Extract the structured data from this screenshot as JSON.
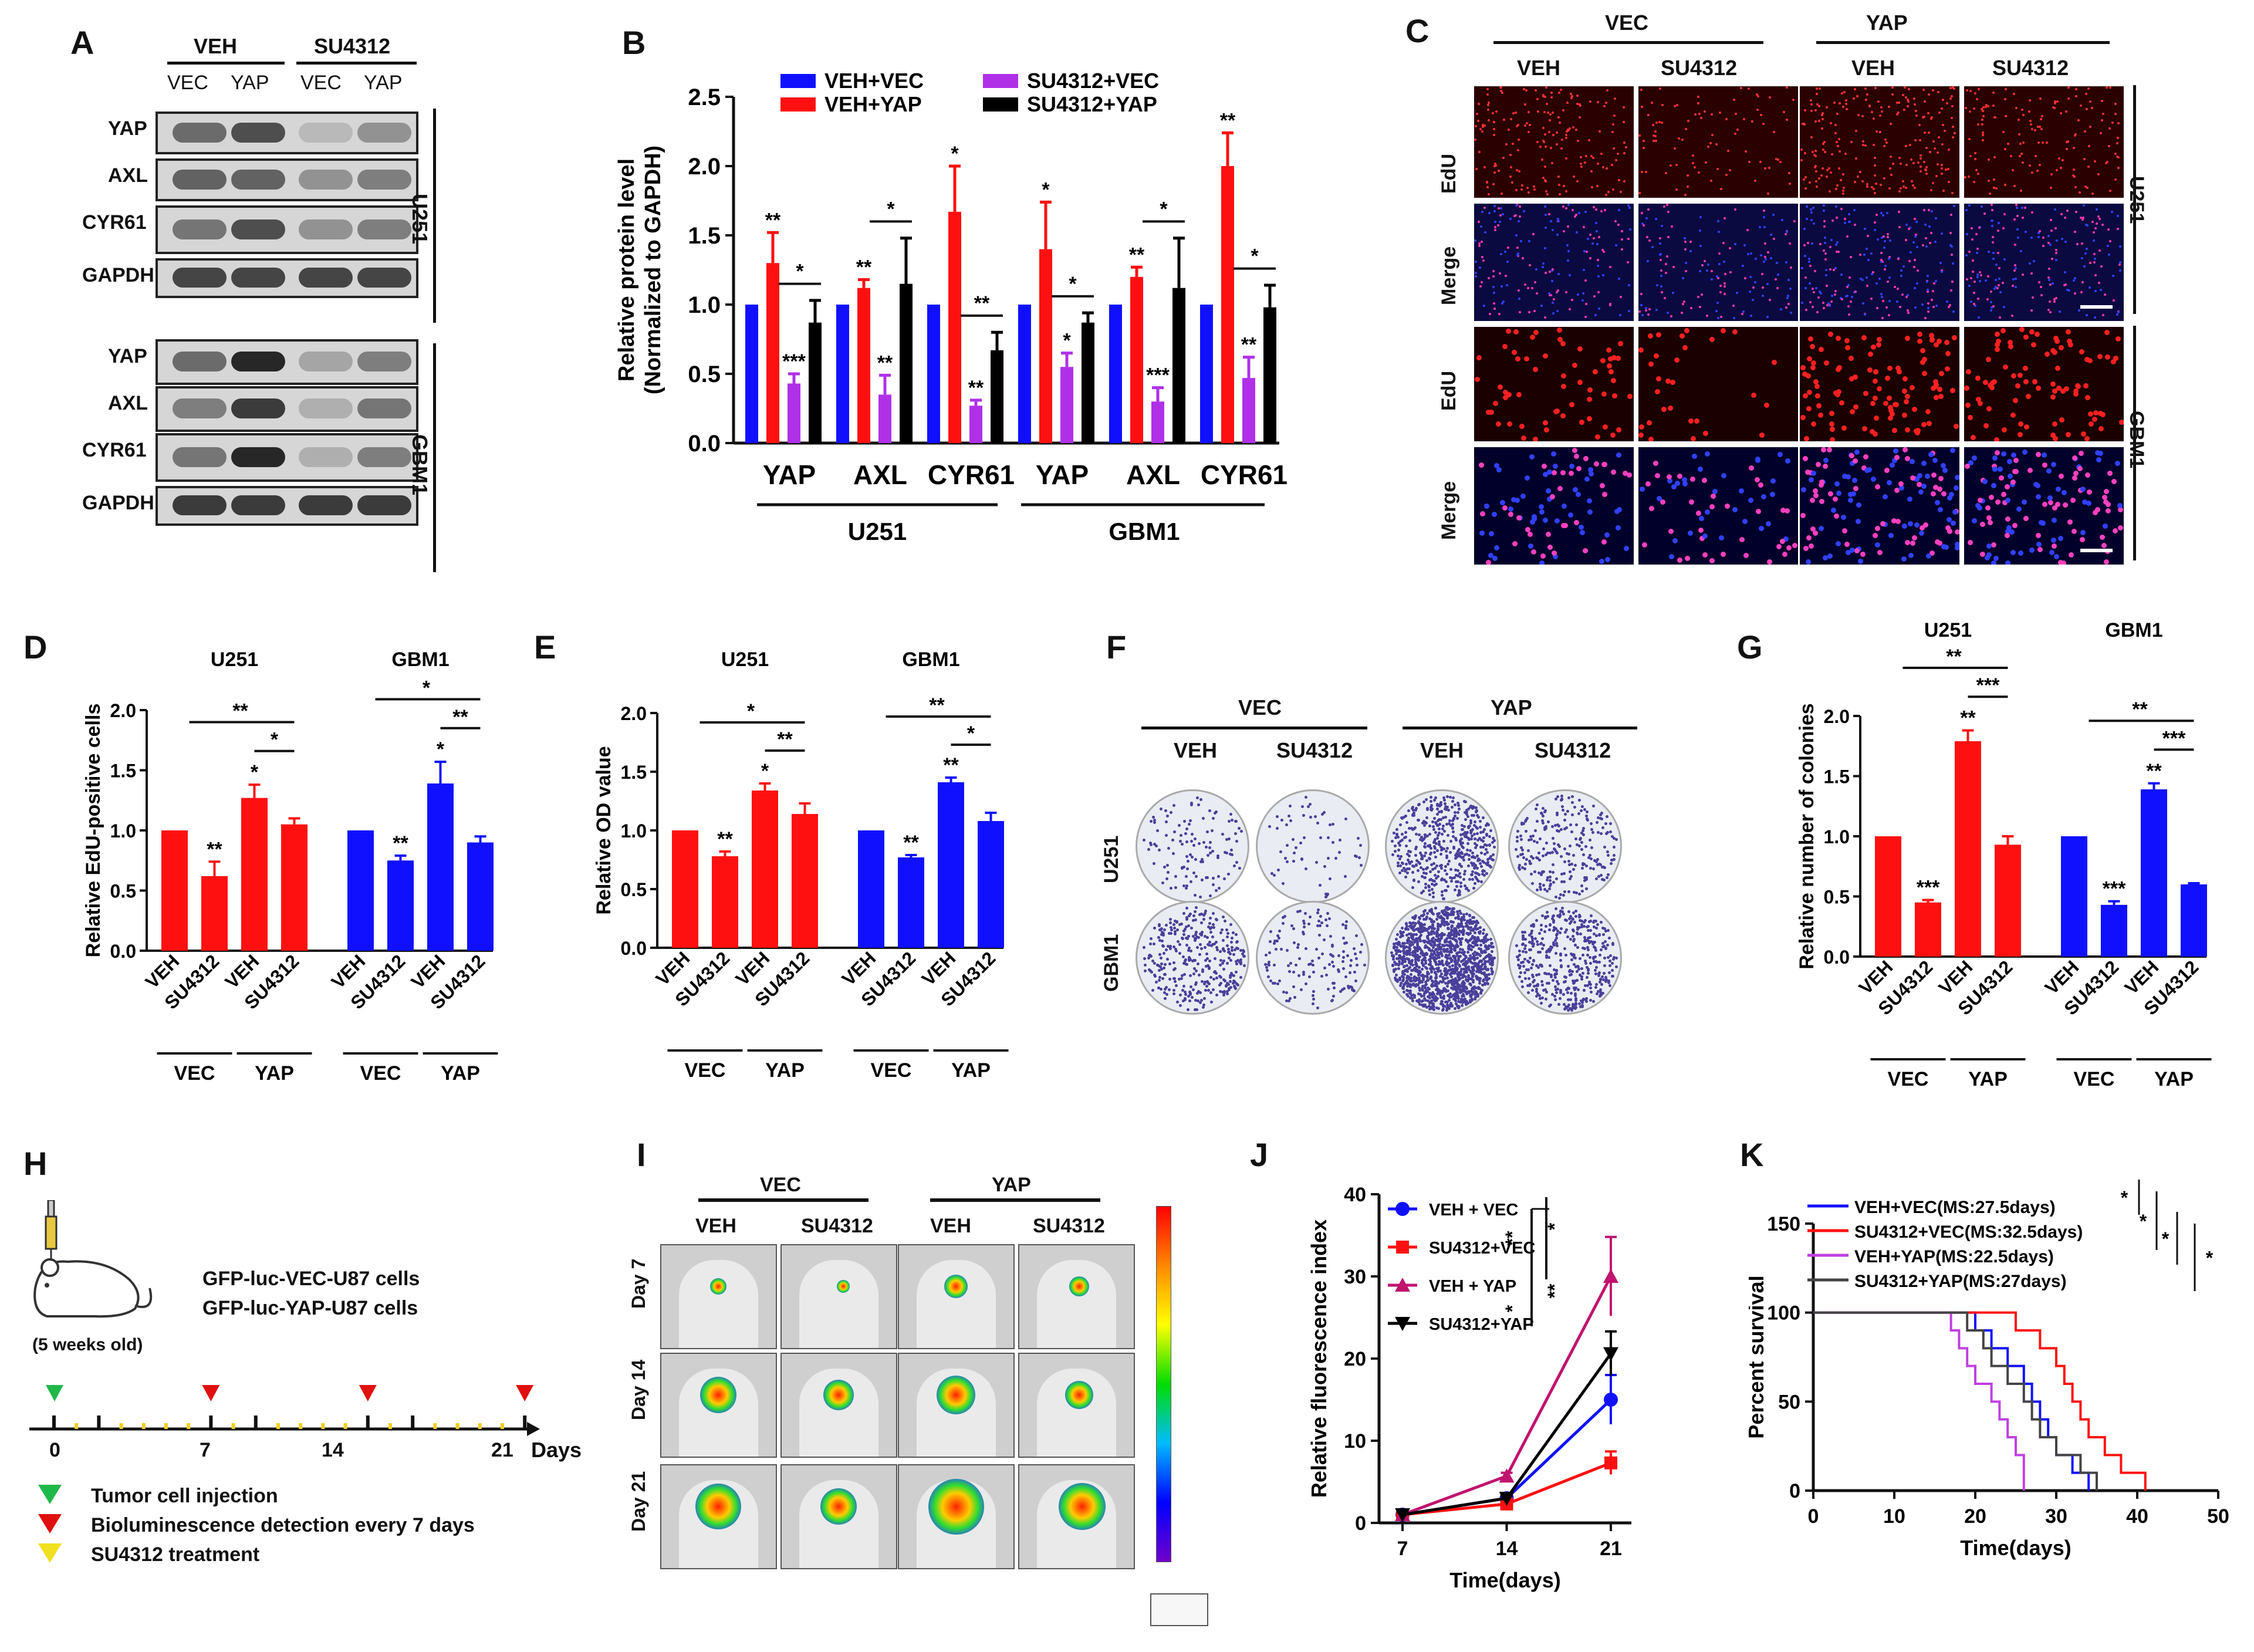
{
  "panelA": {
    "label": "A",
    "top_groups": [
      "VEH",
      "SU4312"
    ],
    "lanes": [
      "VEC",
      "YAP",
      "VEC",
      "YAP"
    ],
    "rows": [
      "YAP",
      "AXL",
      "CYR61",
      "GAPDH",
      "YAP",
      "AXL",
      "CYR61",
      "GAPDH"
    ],
    "cell_lines": [
      "U251",
      "GBM1"
    ]
  },
  "panelC": {
    "label": "C",
    "top_groups": [
      "VEC",
      "YAP"
    ],
    "cols": [
      "VEH",
      "SU4312",
      "VEH",
      "SU4312"
    ],
    "rows": [
      "EdU",
      "Merge",
      "EdU",
      "Merge"
    ],
    "cell_lines": [
      "U251",
      "GBM1"
    ]
  },
  "panelF": {
    "label": "F",
    "top_groups": [
      "VEC",
      "YAP"
    ],
    "cols": [
      "VEH",
      "SU4312",
      "VEH",
      "SU4312"
    ],
    "rows": [
      "U251",
      "GBM1"
    ]
  },
  "panelH": {
    "label": "H",
    "cells1": "GFP-luc-VEC-U87 cells",
    "cells2": "GFP-luc-YAP-U87 cells",
    "age": "(5 weeks old)",
    "ticks": [
      "0",
      "7",
      "14",
      "21"
    ],
    "days": "Days",
    "legend": [
      "Tumor cell injection",
      "Bioluminescence detection every 7 days",
      "SU4312 treatment"
    ]
  },
  "panelI": {
    "label": "I",
    "top_groups": [
      "VEC",
      "YAP"
    ],
    "cols": [
      "VEH",
      "SU4312",
      "VEH",
      "SU4312"
    ],
    "rows": [
      "Day 7",
      "Day 14",
      "Day 21"
    ]
  },
  "chart_data": [
    {
      "panel": "B",
      "type": "bar",
      "ylabel": "Relative protein level (Normalized to GAPDH)",
      "ylim": [
        0,
        2.5
      ],
      "yticks": [
        "0.0",
        "0.5",
        "1.0",
        "1.5",
        "2.0",
        "2.5"
      ],
      "categories": [
        "YAP",
        "AXL",
        "CYR61",
        "YAP",
        "AXL",
        "CYR61"
      ],
      "groups": [
        "U251",
        "GBM1"
      ],
      "legend": [
        "VEH+VEC",
        "VEH+YAP",
        "SU4312+VEC",
        "SU4312+YAP"
      ],
      "colors": [
        "#1010ff",
        "#ff1010",
        "#b030e8",
        "#000000"
      ],
      "series": [
        {
          "name": "VEH+VEC",
          "values": [
            1.0,
            1.0,
            1.0,
            1.0,
            1.0,
            1.0
          ],
          "err": [
            0,
            0,
            0,
            0,
            0,
            0
          ]
        },
        {
          "name": "VEH+YAP",
          "values": [
            1.3,
            1.12,
            1.67,
            1.4,
            1.2,
            2.0
          ],
          "err": [
            0.22,
            0.06,
            0.33,
            0.34,
            0.07,
            0.24
          ]
        },
        {
          "name": "SU4312+VEC",
          "values": [
            0.43,
            0.35,
            0.27,
            0.55,
            0.3,
            0.47
          ],
          "err": [
            0.07,
            0.14,
            0.04,
            0.1,
            0.1,
            0.15
          ]
        },
        {
          "name": "SU4312+YAP",
          "values": [
            0.87,
            1.15,
            0.67,
            0.87,
            1.12,
            0.98
          ],
          "err": [
            0.16,
            0.33,
            0.13,
            0.07,
            0.36,
            0.16
          ]
        }
      ],
      "bar_stars": [
        [
          "",
          "**",
          "***",
          ""
        ],
        [
          "",
          "**",
          "**",
          ""
        ],
        [
          "",
          "*",
          "**",
          ""
        ],
        [
          "",
          "*",
          "*",
          ""
        ],
        [
          "",
          "**",
          "***",
          ""
        ],
        [
          "",
          "**",
          "**",
          ""
        ]
      ],
      "bracket_stars": [
        "*",
        "*",
        "**",
        "*",
        "*",
        "*"
      ]
    },
    {
      "panel": "D",
      "type": "bar",
      "ylabel": "Relative EdU-positive cells",
      "ylim": [
        0,
        2.0
      ],
      "yticks": [
        "0.0",
        "0.5",
        "1.0",
        "1.5",
        "2.0"
      ],
      "groups": [
        "U251",
        "GBM1"
      ],
      "group_colors": [
        "#ff1010",
        "#1010ff"
      ],
      "categories": [
        "VEH",
        "SU4312",
        "VEH",
        "SU4312",
        "VEH",
        "SU4312",
        "VEH",
        "SU4312"
      ],
      "subgroups": [
        "VEC",
        "YAP",
        "VEC",
        "YAP"
      ],
      "values": [
        1.0,
        0.62,
        1.27,
        1.05,
        1.0,
        0.75,
        1.39,
        0.9
      ],
      "err": [
        0,
        0.12,
        0.11,
        0.05,
        0,
        0.04,
        0.18,
        0.05
      ],
      "stars": [
        "",
        "**",
        "*",
        "",
        "",
        "**",
        "*",
        ""
      ],
      "brackets": [
        [
          "**",
          "*"
        ],
        [
          "*",
          "**"
        ]
      ]
    },
    {
      "panel": "E",
      "type": "bar",
      "ylabel": "Relative OD value",
      "ylim": [
        0,
        2.0
      ],
      "yticks": [
        "0.0",
        "0.5",
        "1.0",
        "1.5",
        "2.0"
      ],
      "groups": [
        "U251",
        "GBM1"
      ],
      "group_colors": [
        "#ff1010",
        "#1010ff"
      ],
      "categories": [
        "VEH",
        "SU4312",
        "VEH",
        "SU4312",
        "VEH",
        "SU4312",
        "VEH",
        "SU4312"
      ],
      "subgroups": [
        "VEC",
        "YAP",
        "VEC",
        "YAP"
      ],
      "values": [
        1.0,
        0.78,
        1.34,
        1.14,
        1.0,
        0.77,
        1.41,
        1.08
      ],
      "err": [
        0,
        0.04,
        0.06,
        0.09,
        0,
        0.02,
        0.04,
        0.07
      ],
      "stars": [
        "",
        "**",
        "*",
        "",
        "",
        "**",
        "**",
        ""
      ],
      "brackets": [
        [
          "*",
          "**"
        ],
        [
          "**",
          "*"
        ]
      ]
    },
    {
      "panel": "G",
      "type": "bar",
      "ylabel": "Relative number of colonies",
      "ylim": [
        0,
        2.0
      ],
      "yticks": [
        "0.0",
        "0.5",
        "1.0",
        "1.5",
        "2.0"
      ],
      "groups": [
        "U251",
        "GBM1"
      ],
      "group_colors": [
        "#ff1010",
        "#1010ff"
      ],
      "categories": [
        "VEH",
        "SU4312",
        "VEH",
        "SU4312",
        "VEH",
        "SU4312",
        "VEH",
        "SU4312"
      ],
      "subgroups": [
        "VEC",
        "YAP",
        "VEC",
        "YAP"
      ],
      "values": [
        1.0,
        0.45,
        1.79,
        0.93,
        1.0,
        0.43,
        1.39,
        0.6
      ],
      "err": [
        0,
        0.02,
        0.09,
        0.07,
        0,
        0.03,
        0.05,
        0.01
      ],
      "stars": [
        "",
        "***",
        "**",
        "",
        "",
        "***",
        "**",
        ""
      ],
      "brackets": [
        [
          "**",
          "***"
        ],
        [
          "**",
          "***"
        ]
      ]
    },
    {
      "panel": "J",
      "type": "line",
      "xlabel": "Time(days)",
      "ylabel": "Relative fluorescence index",
      "x": [
        7,
        14,
        21
      ],
      "ylim": [
        0,
        40
      ],
      "yticks": [
        "0",
        "10",
        "20",
        "30",
        "40"
      ],
      "xticks": [
        "7",
        "14",
        "21"
      ],
      "series": [
        {
          "name": "VEH + VEC",
          "values": [
            1,
            3,
            15
          ],
          "err": [
            0.3,
            0.4,
            3
          ],
          "color": "#1010ff",
          "marker": "circle"
        },
        {
          "name": "SU4312+VEC",
          "values": [
            1,
            2.3,
            7.3
          ],
          "err": [
            0.3,
            0.3,
            1.4
          ],
          "color": "#ff1010",
          "marker": "square"
        },
        {
          "name": "VEH + YAP",
          "values": [
            1,
            5.7,
            30
          ],
          "err": [
            0.3,
            0.4,
            4.8
          ],
          "color": "#c0146e",
          "marker": "triangle"
        },
        {
          "name": "SU4312+YAP",
          "values": [
            1,
            3,
            20.6
          ],
          "err": [
            0.3,
            0.3,
            2.7
          ],
          "color": "#000000",
          "marker": "triangle-down"
        }
      ],
      "sig": [
        "**",
        "*",
        "*",
        "**"
      ]
    },
    {
      "panel": "K",
      "type": "line",
      "xlabel": "Time(days)",
      "ylabel": "Percent survival",
      "xlim": [
        0,
        50
      ],
      "ylim": [
        0,
        150
      ],
      "xticks": [
        "0",
        "10",
        "20",
        "30",
        "40",
        "50"
      ],
      "yticks": [
        "0",
        "50",
        "100",
        "150"
      ],
      "series": [
        {
          "name": "VEH+VEC(MS:27.5days)",
          "color": "#1010ff",
          "steps": [
            [
              0,
              100
            ],
            [
              20,
              100
            ],
            [
              20,
              90
            ],
            [
              22,
              90
            ],
            [
              22,
              80
            ],
            [
              24,
              80
            ],
            [
              24,
              70
            ],
            [
              26,
              70
            ],
            [
              26,
              60
            ],
            [
              27,
              60
            ],
            [
              27,
              50
            ],
            [
              28,
              50
            ],
            [
              28,
              40
            ],
            [
              29,
              40
            ],
            [
              29,
              30
            ],
            [
              30,
              30
            ],
            [
              30,
              20
            ],
            [
              32,
              20
            ],
            [
              32,
              10
            ],
            [
              34,
              10
            ],
            [
              34,
              0
            ]
          ]
        },
        {
          "name": "SU4312+VEC(MS:32.5days)",
          "color": "#ff1010",
          "steps": [
            [
              0,
              100
            ],
            [
              25,
              100
            ],
            [
              25,
              90
            ],
            [
              28,
              90
            ],
            [
              28,
              80
            ],
            [
              30,
              80
            ],
            [
              30,
              70
            ],
            [
              31,
              70
            ],
            [
              31,
              60
            ],
            [
              32,
              60
            ],
            [
              32,
              50
            ],
            [
              33,
              50
            ],
            [
              33,
              40
            ],
            [
              34,
              40
            ],
            [
              34,
              30
            ],
            [
              36,
              30
            ],
            [
              36,
              20
            ],
            [
              38,
              20
            ],
            [
              38,
              10
            ],
            [
              41,
              10
            ],
            [
              41,
              0
            ]
          ]
        },
        {
          "name": "VEH+YAP(MS:22.5days)",
          "color": "#c040e0",
          "steps": [
            [
              0,
              100
            ],
            [
              17,
              100
            ],
            [
              17,
              90
            ],
            [
              18,
              90
            ],
            [
              18,
              80
            ],
            [
              19,
              80
            ],
            [
              19,
              70
            ],
            [
              20,
              70
            ],
            [
              20,
              60
            ],
            [
              22,
              60
            ],
            [
              22,
              50
            ],
            [
              23,
              50
            ],
            [
              23,
              40
            ],
            [
              24,
              40
            ],
            [
              24,
              30
            ],
            [
              25,
              30
            ],
            [
              25,
              20
            ],
            [
              26,
              20
            ],
            [
              26,
              0
            ]
          ]
        },
        {
          "name": "SU4312+YAP(MS:27days)",
          "color": "#444444",
          "steps": [
            [
              0,
              100
            ],
            [
              19,
              100
            ],
            [
              19,
              90
            ],
            [
              21,
              90
            ],
            [
              21,
              80
            ],
            [
              22,
              80
            ],
            [
              22,
              70
            ],
            [
              24,
              70
            ],
            [
              24,
              60
            ],
            [
              26,
              60
            ],
            [
              26,
              50
            ],
            [
              27,
              50
            ],
            [
              27,
              40
            ],
            [
              28,
              40
            ],
            [
              28,
              30
            ],
            [
              30,
              30
            ],
            [
              30,
              20
            ],
            [
              33,
              20
            ],
            [
              33,
              10
            ],
            [
              35,
              10
            ],
            [
              35,
              0
            ]
          ]
        }
      ],
      "sig": [
        "*",
        "*",
        "*",
        "*"
      ]
    }
  ]
}
